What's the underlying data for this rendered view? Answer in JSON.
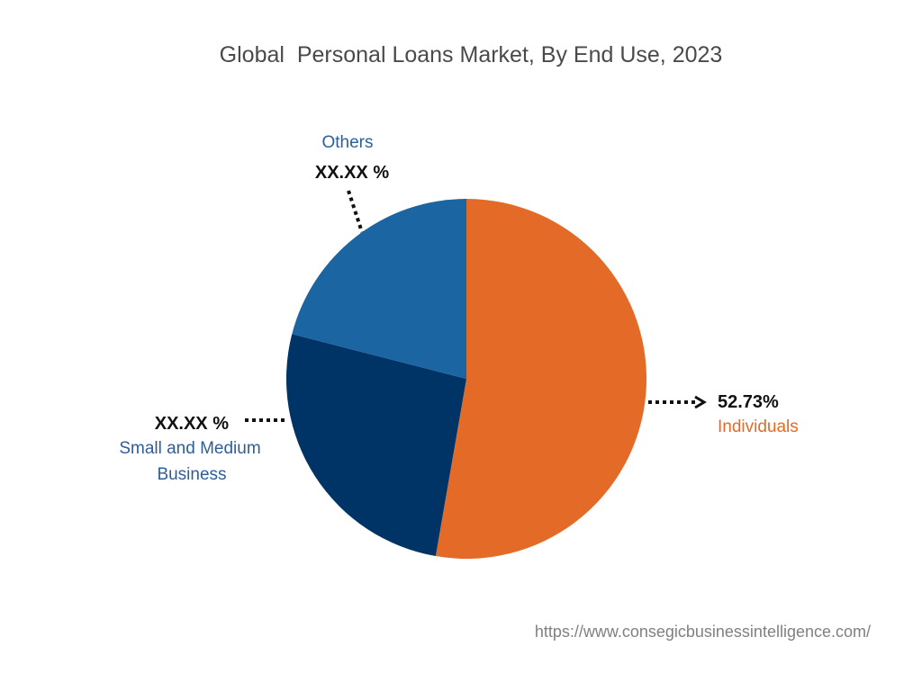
{
  "chart_data": {
    "type": "pie",
    "title": "Global  Personal Loans Market, By End Use, 2023",
    "slices": [
      {
        "name": "Individuals",
        "value": 52.73,
        "value_label": "52.73%",
        "label_lines": [
          "Individuals"
        ],
        "color": "#E46A27"
      },
      {
        "name": "Small and Medium Business",
        "value": 26.27,
        "value_label": "XX.XX %",
        "label_lines": [
          "Small and Medium",
          "Business"
        ],
        "color": "#003366"
      },
      {
        "name": "Others",
        "value": 21.0,
        "value_label": "XX.XX %",
        "label_lines": [
          "Others"
        ],
        "color": "#1A65A2"
      }
    ],
    "label_colors": {
      "Individuals": "#E46A27",
      "Small and Medium Business": "#2E5E99",
      "Others": "#2E5E99"
    }
  },
  "footer": {
    "url": "https://www.consegicbusinessintelligence.com/"
  }
}
